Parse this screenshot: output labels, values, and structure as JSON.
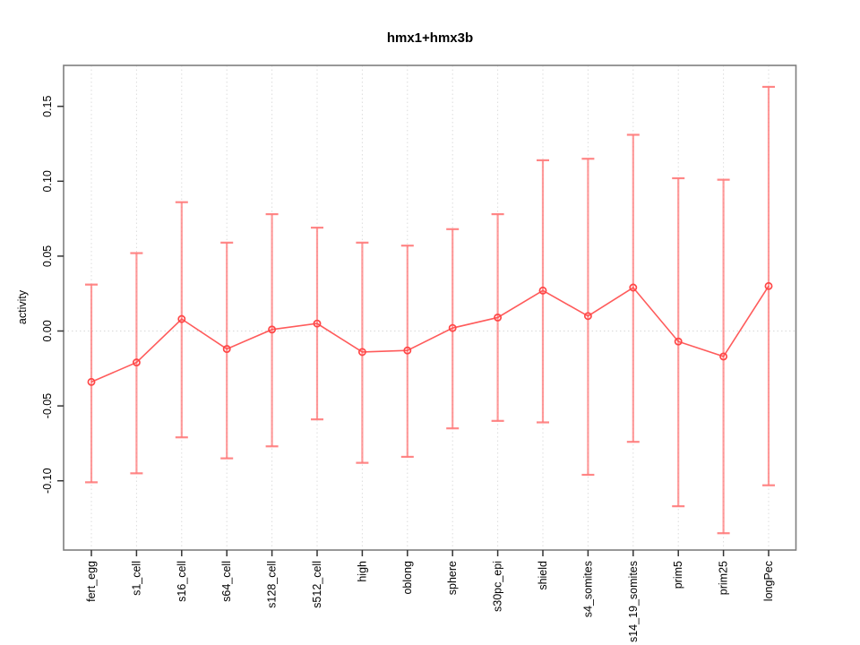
{
  "chart_data": {
    "type": "line",
    "title": "hmx1+hmx3b",
    "ylabel": "activity",
    "xlabel": "",
    "categories": [
      "fert_egg",
      "s1_cell",
      "s16_cell",
      "s64_cell",
      "s128_cell",
      "s512_cell",
      "high",
      "oblong",
      "sphere",
      "s30pc_epi",
      "shield",
      "s4_somites",
      "s14_19_somites",
      "prim5",
      "prim25",
      "longPec"
    ],
    "series": [
      {
        "name": "activity",
        "values": [
          -0.034,
          -0.021,
          0.008,
          -0.012,
          0.001,
          0.005,
          -0.014,
          -0.013,
          0.002,
          0.009,
          0.027,
          0.01,
          0.029,
          -0.007,
          -0.017,
          0.03
        ],
        "error_upper": [
          0.031,
          0.052,
          0.086,
          0.059,
          0.078,
          0.069,
          0.059,
          0.057,
          0.068,
          0.078,
          0.114,
          0.115,
          0.131,
          0.102,
          0.101,
          0.163
        ],
        "error_lower": [
          -0.101,
          -0.095,
          -0.071,
          -0.085,
          -0.077,
          -0.059,
          -0.088,
          -0.084,
          -0.065,
          -0.06,
          -0.061,
          -0.096,
          -0.074,
          -0.117,
          -0.135,
          -0.103
        ]
      }
    ],
    "yticks": [
      -0.1,
      -0.05,
      0.0,
      0.05,
      0.1,
      0.15
    ],
    "ytick_labels": [
      "-0.10",
      "-0.05",
      "0.00",
      "0.05",
      "0.10",
      "0.15"
    ],
    "ylim": [
      -0.147,
      0.177
    ],
    "grid": {
      "vertical": "dotted line at every category",
      "horizontal": "dotted line at y=0 only"
    },
    "legend": "none",
    "marker": "open-circle",
    "colors": {
      "series_line": "#ff5252",
      "point_stroke": "#ff4747",
      "error_bar": "#ff7a7a",
      "gridline": "#dcdcdc",
      "zero_line": "#d8d8d8",
      "plot_border": "#7f7f7f",
      "tick": "#333333",
      "background": "#ffffff"
    }
  }
}
